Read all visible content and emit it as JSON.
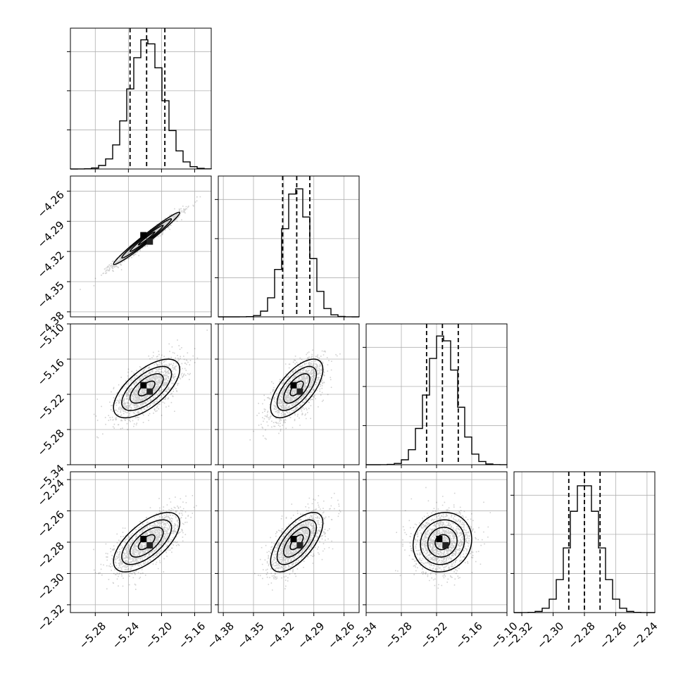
{
  "chart_data": {
    "type": "corner",
    "title": "",
    "parameters": [
      {
        "range": [
          -5.31,
          -5.14
        ],
        "ticks": [
          -5.28,
          -5.24,
          -5.2,
          -5.16
        ],
        "tick_labels": [
          "−5.28",
          "−5.24",
          "−5.20",
          "−5.16"
        ],
        "mean": -5.218,
        "sigma": 0.02,
        "quantiles": [
          -5.238,
          -5.218,
          -5.196
        ]
      },
      {
        "range": [
          -4.385,
          -4.245
        ],
        "ticks": [
          -4.38,
          -4.35,
          -4.32,
          -4.29,
          -4.26
        ],
        "tick_labels": [
          "−4.38",
          "−4.35",
          "−4.32",
          "−4.29",
          "−4.26"
        ],
        "mean": -4.307,
        "sigma": 0.013,
        "quantiles": [
          -4.321,
          -4.307,
          -4.294
        ]
      },
      {
        "range": [
          -5.34,
          -5.1
        ],
        "ticks": [
          -5.34,
          -5.28,
          -5.22,
          -5.16,
          -5.1
        ],
        "tick_labels": [
          "−5.34",
          "−5.28",
          "−5.22",
          "−5.16",
          "−5.10"
        ],
        "mean": -5.21,
        "sigma": 0.025,
        "quantiles": [
          -5.237,
          -5.21,
          -5.183
        ]
      },
      {
        "range": [
          -2.325,
          -2.235
        ],
        "ticks": [
          -2.32,
          -2.3,
          -2.28,
          -2.26,
          -2.24
        ],
        "tick_labels": [
          "−2.32",
          "−2.30",
          "−2.28",
          "−2.26",
          "−2.24"
        ],
        "mean": -2.28,
        "sigma": 0.0095,
        "quantiles": [
          -2.29,
          -2.28,
          -2.27
        ]
      }
    ],
    "correlations": [
      [
        1.0,
        0.98,
        0.65,
        0.65
      ],
      [
        0.98,
        1.0,
        0.65,
        0.65
      ],
      [
        0.65,
        0.65,
        1.0,
        0.1
      ],
      [
        0.65,
        0.65,
        0.1,
        1.0
      ]
    ],
    "contour_levels_sigma": [
      0.5,
      1.0,
      1.5,
      2.0
    ],
    "histogram_bins": 20,
    "scatter_points": 1500,
    "grid": true,
    "legend": "none",
    "colors": {
      "line": "#000000",
      "grid": "#b0b0b0",
      "points": "#000000"
    }
  }
}
